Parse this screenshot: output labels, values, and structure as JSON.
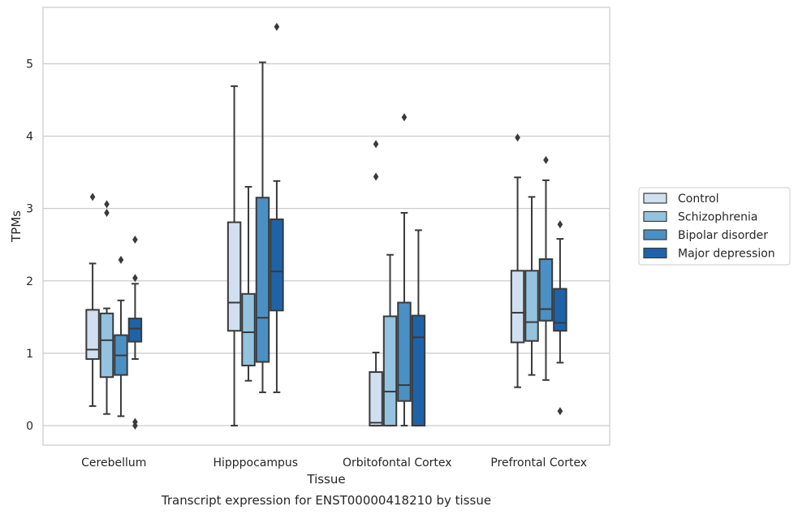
{
  "chart_data": {
    "type": "box",
    "title": "",
    "caption": "Transcript expression for ENST00000418210 by tissue",
    "xlabel": "Tissue",
    "ylabel": "TPMs",
    "ylim": [
      -0.27,
      5.78
    ],
    "yticks": [
      "0",
      "1",
      "2",
      "3",
      "4",
      "5"
    ],
    "grid": "horizontal",
    "legend_position": "right, outside plot",
    "categories": [
      "Cerebellum",
      "Hipppocampus",
      "Orbitofontal Cortex",
      "Prefrontal Cortex"
    ],
    "series": [
      {
        "name": "Control",
        "color": "#d0e0f0",
        "boxes": [
          {
            "whislo": 0.27,
            "q1": 0.92,
            "med": 1.05,
            "q3": 1.6,
            "whishi": 2.24,
            "fliers": [
              3.16
            ]
          },
          {
            "whislo": 0.0,
            "q1": 1.31,
            "med": 1.7,
            "q3": 2.81,
            "whishi": 4.69,
            "fliers": []
          },
          {
            "whislo": 0.0,
            "q1": 0.0,
            "med": 0.04,
            "q3": 0.74,
            "whishi": 1.01,
            "fliers": [
              3.44,
              3.89
            ]
          },
          {
            "whislo": 0.53,
            "q1": 1.15,
            "med": 1.56,
            "q3": 2.14,
            "whishi": 3.43,
            "fliers": [
              3.98
            ]
          }
        ]
      },
      {
        "name": "Schizophrenia",
        "color": "#93c3df",
        "boxes": [
          {
            "whislo": 0.16,
            "q1": 0.67,
            "med": 1.18,
            "q3": 1.55,
            "whishi": 1.62,
            "fliers": [
              2.94,
              3.06
            ]
          },
          {
            "whislo": 0.62,
            "q1": 0.83,
            "med": 1.29,
            "q3": 1.82,
            "whishi": 3.3,
            "fliers": []
          },
          {
            "whislo": 0.0,
            "q1": 0.0,
            "med": 0.47,
            "q3": 1.51,
            "whishi": 2.36,
            "fliers": []
          },
          {
            "whislo": 0.7,
            "q1": 1.17,
            "med": 1.43,
            "q3": 2.14,
            "whishi": 3.16,
            "fliers": []
          }
        ]
      },
      {
        "name": "Bipolar disorder",
        "color": "#4a90c5",
        "boxes": [
          {
            "whislo": 0.13,
            "q1": 0.7,
            "med": 0.97,
            "q3": 1.25,
            "whishi": 1.73,
            "fliers": [
              2.29
            ]
          },
          {
            "whislo": 0.46,
            "q1": 0.88,
            "med": 1.49,
            "q3": 3.15,
            "whishi": 5.02,
            "fliers": []
          },
          {
            "whislo": 0.0,
            "q1": 0.34,
            "med": 0.56,
            "q3": 1.7,
            "whishi": 2.94,
            "fliers": [
              4.26
            ]
          },
          {
            "whislo": 0.63,
            "q1": 1.45,
            "med": 1.61,
            "q3": 2.3,
            "whishi": 3.39,
            "fliers": [
              3.67
            ]
          }
        ]
      },
      {
        "name": "Major depression",
        "color": "#1e63a8",
        "boxes": [
          {
            "whislo": 0.92,
            "q1": 1.16,
            "med": 1.34,
            "q3": 1.48,
            "whishi": 1.96,
            "fliers": [
              0.0,
              0.05,
              2.04,
              2.57
            ]
          },
          {
            "whislo": 0.46,
            "q1": 1.59,
            "med": 2.13,
            "q3": 2.85,
            "whishi": 3.38,
            "fliers": [
              5.51
            ]
          },
          {
            "whislo": 0.0,
            "q1": 0.0,
            "med": 1.22,
            "q3": 1.52,
            "whishi": 2.7,
            "fliers": []
          },
          {
            "whislo": 0.87,
            "q1": 1.31,
            "med": 1.42,
            "q3": 1.89,
            "whishi": 2.58,
            "fliers": [
              0.2,
              2.78
            ]
          }
        ]
      }
    ]
  }
}
